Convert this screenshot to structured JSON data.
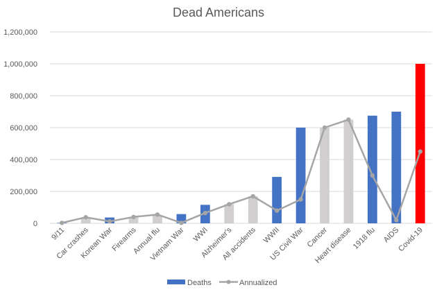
{
  "chart_data": {
    "type": "bar",
    "title": "Dead Americans",
    "xlabel": "",
    "ylabel": "",
    "ylim": [
      0,
      1200000
    ],
    "yticks": [
      0,
      200000,
      400000,
      600000,
      800000,
      1000000,
      1200000
    ],
    "ytick_labels": [
      "0",
      "200,000",
      "400,000",
      "600,000",
      "800,000",
      "1,000,000",
      "1,200,000"
    ],
    "grid": true,
    "legend_position": "bottom",
    "categories": [
      "9/11",
      "Car crashes",
      "Korean War",
      "Firearms",
      "Annual flu",
      "Vietnam War",
      "WWI",
      "Alzheimer's",
      "All accidents",
      "WWII",
      "US Civil War",
      "Cancer",
      "Heart disease",
      "1918 flu",
      "AIDS",
      "Covid-19"
    ],
    "series": [
      {
        "name": "Deaths",
        "type": "bar",
        "color": "#4472C4",
        "values": [
          3000,
          38000,
          36500,
          40000,
          50000,
          58000,
          116000,
          120000,
          170000,
          291000,
          600000,
          600000,
          650000,
          675000,
          700000,
          1000000
        ],
        "point_colors": [
          "#4472C4",
          "#D0CECE",
          "#4472C4",
          "#D0CECE",
          "#D0CECE",
          "#4472C4",
          "#4472C4",
          "#D0CECE",
          "#D0CECE",
          "#4472C4",
          "#4472C4",
          "#D0CECE",
          "#D0CECE",
          "#4472C4",
          "#4472C4",
          "#FF0000"
        ]
      },
      {
        "name": "Annualized",
        "type": "line",
        "color": "#A5A5A5",
        "values": [
          3000,
          38000,
          12000,
          40000,
          55000,
          3000,
          65000,
          120000,
          170000,
          80000,
          150000,
          600000,
          650000,
          300000,
          20000,
          450000
        ]
      }
    ]
  }
}
